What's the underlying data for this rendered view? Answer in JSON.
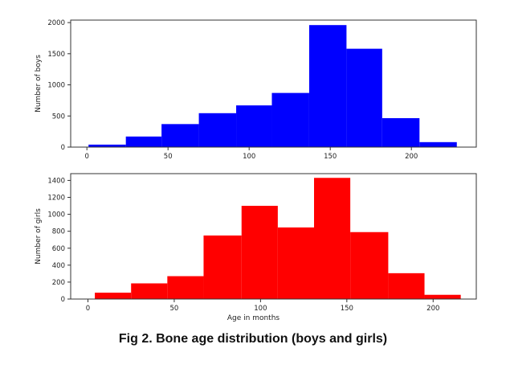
{
  "caption": "Fig 2. Bone age distribution (boys and girls)",
  "chart_data": [
    {
      "type": "bar",
      "subtype": "histogram",
      "title": "",
      "xlabel": "",
      "ylabel": "Number of boys",
      "color": "#0000ff",
      "xlim": [
        -10,
        240
      ],
      "ylim": [
        0,
        2040
      ],
      "xticks": [
        0,
        50,
        100,
        150,
        200
      ],
      "yticks": [
        0,
        500,
        1000,
        1500,
        2000
      ],
      "bins": [
        {
          "x0": 1,
          "x1": 24,
          "value": 40
        },
        {
          "x0": 24,
          "x1": 46,
          "value": 170
        },
        {
          "x0": 46,
          "x1": 69,
          "value": 370
        },
        {
          "x0": 69,
          "x1": 92,
          "value": 545
        },
        {
          "x0": 92,
          "x1": 114,
          "value": 670
        },
        {
          "x0": 114,
          "x1": 137,
          "value": 870
        },
        {
          "x0": 137,
          "x1": 160,
          "value": 1960
        },
        {
          "x0": 160,
          "x1": 182,
          "value": 1580
        },
        {
          "x0": 182,
          "x1": 205,
          "value": 465
        },
        {
          "x0": 205,
          "x1": 228,
          "value": 80
        }
      ],
      "grid": false
    },
    {
      "type": "bar",
      "subtype": "histogram",
      "title": "",
      "xlabel": "Age in months",
      "ylabel": "Number of girls",
      "color": "#ff0000",
      "xlim": [
        -10,
        225
      ],
      "ylim": [
        0,
        1480
      ],
      "xticks": [
        0,
        50,
        100,
        150,
        200
      ],
      "yticks": [
        0,
        200,
        400,
        600,
        800,
        1000,
        1200,
        1400
      ],
      "bins": [
        {
          "x0": 4,
          "x1": 25,
          "value": 75
        },
        {
          "x0": 25,
          "x1": 46,
          "value": 185
        },
        {
          "x0": 46,
          "x1": 67,
          "value": 270
        },
        {
          "x0": 67,
          "x1": 89,
          "value": 750
        },
        {
          "x0": 89,
          "x1": 110,
          "value": 1100
        },
        {
          "x0": 110,
          "x1": 131,
          "value": 845
        },
        {
          "x0": 131,
          "x1": 152,
          "value": 1430
        },
        {
          "x0": 152,
          "x1": 174,
          "value": 790
        },
        {
          "x0": 174,
          "x1": 195,
          "value": 305
        },
        {
          "x0": 195,
          "x1": 216,
          "value": 50
        }
      ],
      "grid": false
    }
  ]
}
